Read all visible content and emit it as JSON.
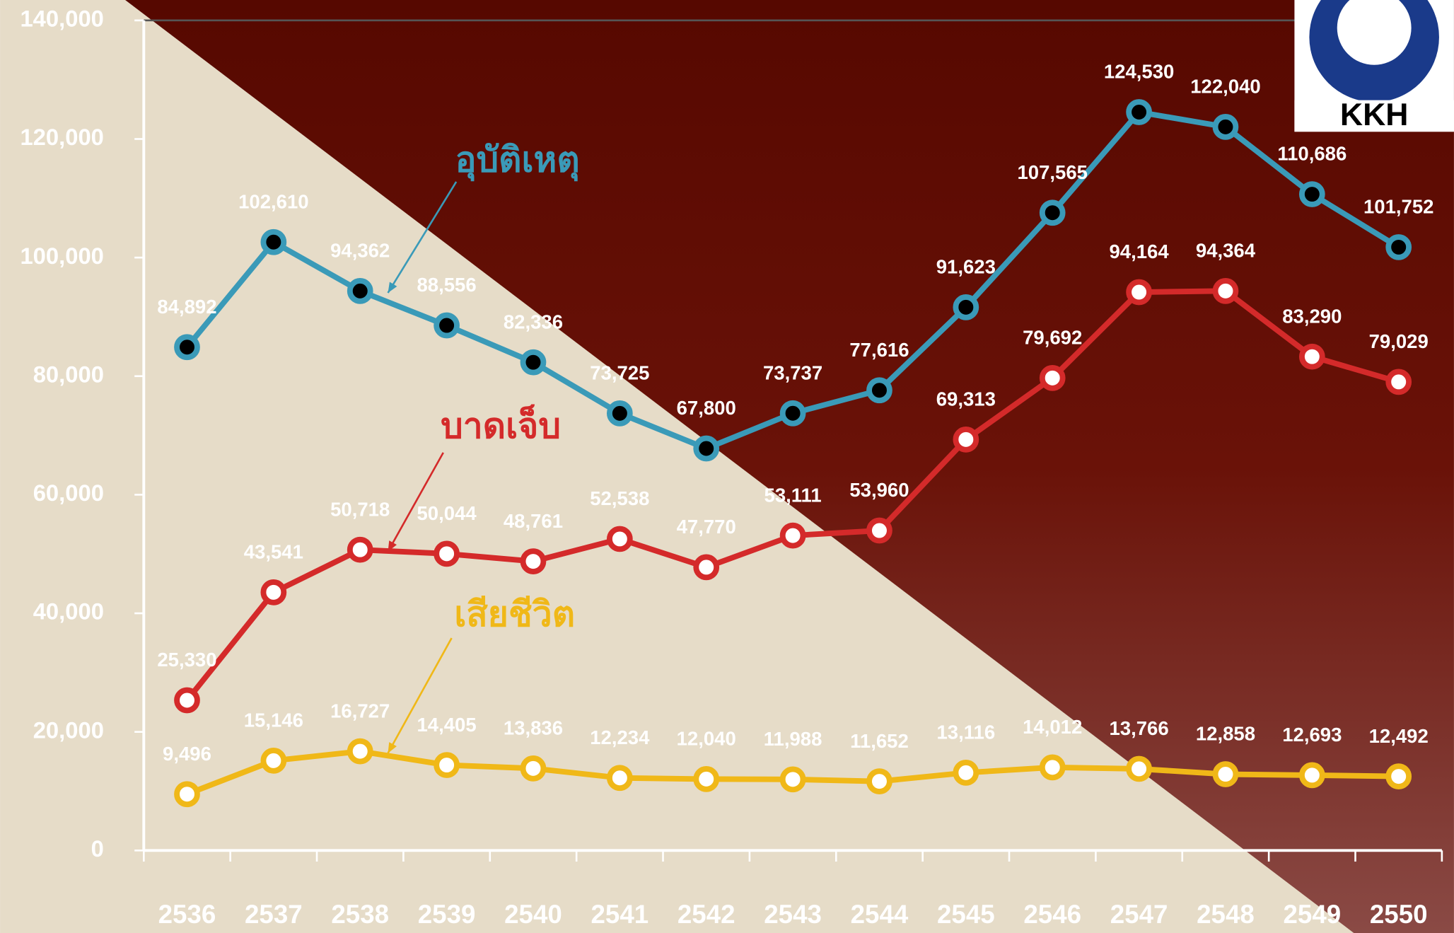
{
  "chart_data": {
    "type": "line",
    "categories": [
      "2536",
      "2537",
      "2538",
      "2539",
      "2540",
      "2541",
      "2542",
      "2543",
      "2544",
      "2545",
      "2546",
      "2547",
      "2548",
      "2549",
      "2550"
    ],
    "series": [
      {
        "name": "อุบัติเหตุ",
        "color": "#3a9ab8",
        "marker_color": "#000000",
        "values": [
          84892,
          102610,
          94362,
          88556,
          82336,
          73725,
          67800,
          73737,
          77616,
          91623,
          107565,
          124530,
          122040,
          110686,
          101752
        ],
        "value_labels": [
          "84,892",
          "102,610",
          "94,362",
          "88,556",
          "82,336",
          "73,725",
          "67,800",
          "73,737",
          "77,616",
          "91,623",
          "107,565",
          "124,530",
          "122,040",
          "110,686",
          "101,752"
        ]
      },
      {
        "name": "บาดเจ็บ",
        "color": "#d42a2a",
        "marker_color": "#ffffff",
        "values": [
          25330,
          43541,
          50718,
          50044,
          48761,
          52538,
          47770,
          53111,
          53960,
          69313,
          79692,
          94164,
          94364,
          83290,
          79029
        ],
        "value_labels": [
          "25,330",
          "43,541",
          "50,718",
          "50,044",
          "48,761",
          "52,538",
          "47,770",
          "53,111",
          "53,960",
          "69,313",
          "79,692",
          "94,164",
          "94,364",
          "83,290",
          "79,029"
        ]
      },
      {
        "name": "เสียชีวิต",
        "color": "#f0b818",
        "marker_color": "#ffffff",
        "values": [
          9496,
          15146,
          16727,
          14405,
          13836,
          12234,
          12040,
          11988,
          11652,
          13116,
          14012,
          13766,
          12858,
          12693,
          12492
        ],
        "value_labels": [
          "9,496",
          "15,146",
          "16,727",
          "14,405",
          "13,836",
          "12,234",
          "12,040",
          "11,988",
          "11,652",
          "13,116",
          "14,012",
          "13,766",
          "12,858",
          "12,693",
          "12,492"
        ]
      }
    ],
    "ylim": [
      0,
      140000
    ],
    "yticks": [
      0,
      {
        "value": 20000,
        "label": "20,000"
      },
      {
        "value": 40000,
        "label": "40,000"
      },
      {
        "value": 60000,
        "label": "60,000"
      },
      {
        "value": 80000,
        "label": "80,000"
      },
      {
        "value": 100000,
        "label": "100,000"
      },
      {
        "value": 120000,
        "label": "120,000"
      },
      {
        "value": 140000,
        "label": "140,000"
      }
    ],
    "grid": false,
    "logo": "KKH"
  }
}
